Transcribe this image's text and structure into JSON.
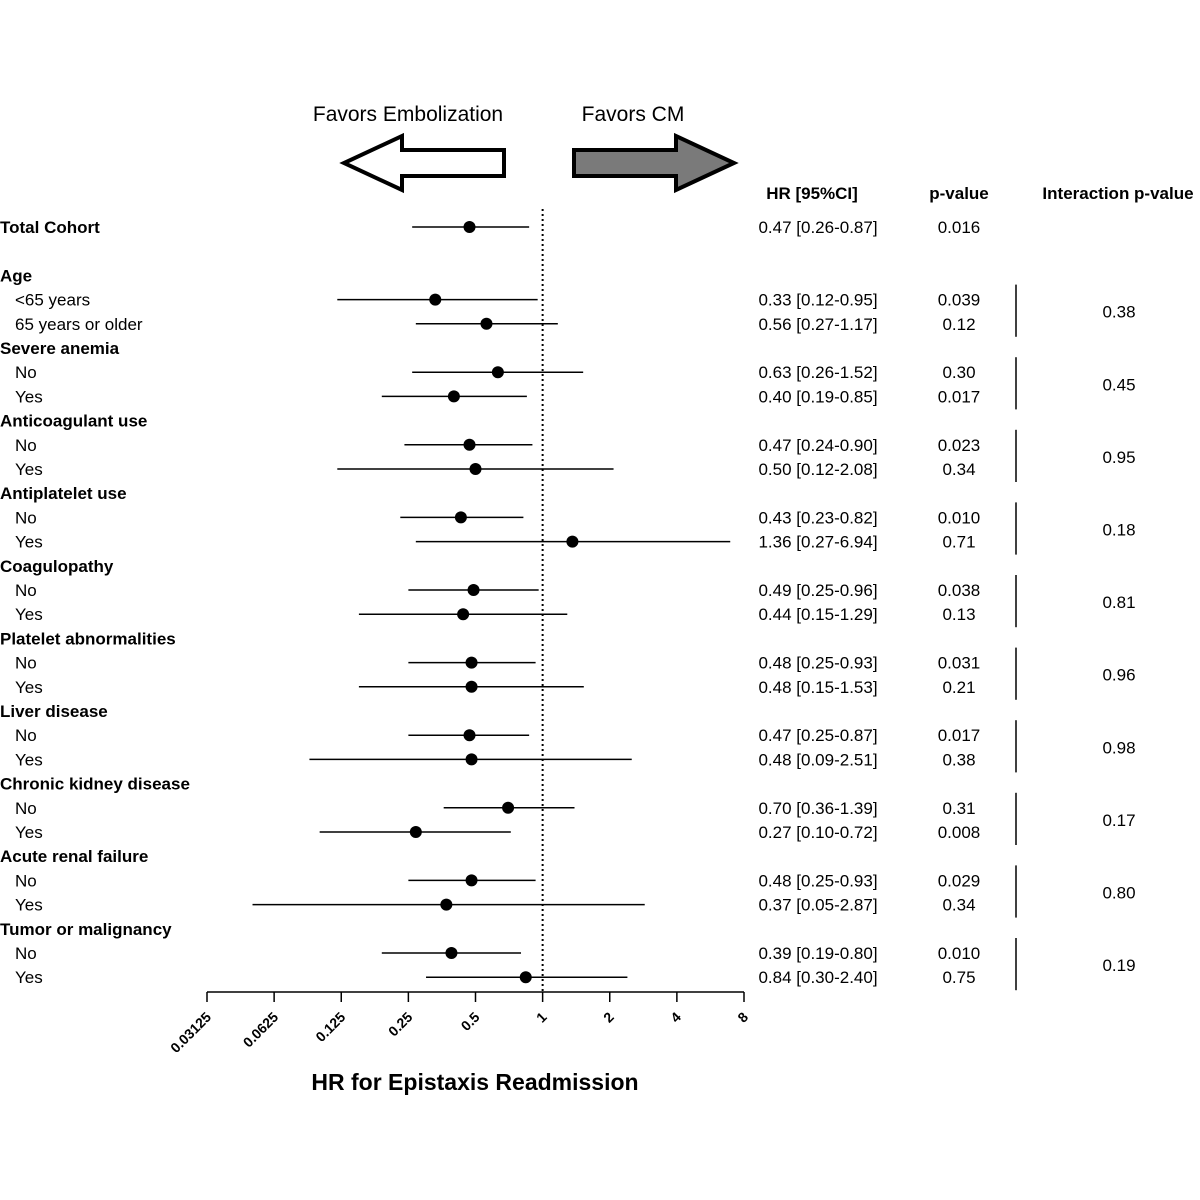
{
  "chart_data": {
    "type": "forest",
    "xlabel": "HR for Epistaxis Readmission",
    "x_scale": "log2",
    "xlim": [
      0.03125,
      8
    ],
    "x_ticks": [
      "0.03125",
      "0.0625",
      "0.125",
      "0.25",
      "0.5",
      "1",
      "2",
      "4",
      "8"
    ],
    "reference_line": 1,
    "favors_left": "Favors Embolization",
    "favors_right": "Favors CM",
    "column_headers": {
      "hr": "HR [95%CI]",
      "p": "p-value",
      "interaction": "Interaction p-value"
    },
    "groups": [
      {
        "title": "Total Cohort",
        "rows": [
          {
            "label": "",
            "hr": 0.47,
            "lo": 0.26,
            "hi": 0.87,
            "hr_text": "0.47 [0.26-0.87]",
            "p": "0.016"
          }
        ],
        "interaction": ""
      },
      {
        "title": "Age",
        "rows": [
          {
            "label": "<65 years",
            "hr": 0.33,
            "lo": 0.12,
            "hi": 0.95,
            "hr_text": "0.33 [0.12-0.95]",
            "p": "0.039"
          },
          {
            "label": "65 years or older",
            "hr": 0.56,
            "lo": 0.27,
            "hi": 1.17,
            "hr_text": "0.56 [0.27-1.17]",
            "p": "0.12"
          }
        ],
        "interaction": "0.38"
      },
      {
        "title": "Severe anemia",
        "rows": [
          {
            "label": "No",
            "hr": 0.63,
            "lo": 0.26,
            "hi": 1.52,
            "hr_text": "0.63 [0.26-1.52]",
            "p": "0.30"
          },
          {
            "label": "Yes",
            "hr": 0.4,
            "lo": 0.19,
            "hi": 0.85,
            "hr_text": "0.40 [0.19-0.85]",
            "p": "0.017"
          }
        ],
        "interaction": "0.45"
      },
      {
        "title": "Anticoagulant use",
        "rows": [
          {
            "label": "No",
            "hr": 0.47,
            "lo": 0.24,
            "hi": 0.9,
            "hr_text": "0.47 [0.24-0.90]",
            "p": "0.023"
          },
          {
            "label": "Yes",
            "hr": 0.5,
            "lo": 0.12,
            "hi": 2.08,
            "hr_text": "0.50 [0.12-2.08]",
            "p": "0.34"
          }
        ],
        "interaction": "0.95"
      },
      {
        "title": "Antiplatelet use",
        "rows": [
          {
            "label": "No",
            "hr": 0.43,
            "lo": 0.23,
            "hi": 0.82,
            "hr_text": "0.43 [0.23-0.82]",
            "p": "0.010"
          },
          {
            "label": "Yes",
            "hr": 1.36,
            "lo": 0.27,
            "hi": 6.94,
            "hr_text": "1.36 [0.27-6.94]",
            "p": "0.71"
          }
        ],
        "interaction": "0.18"
      },
      {
        "title": "Coagulopathy",
        "rows": [
          {
            "label": "No",
            "hr": 0.49,
            "lo": 0.25,
            "hi": 0.96,
            "hr_text": "0.49 [0.25-0.96]",
            "p": "0.038"
          },
          {
            "label": "Yes",
            "hr": 0.44,
            "lo": 0.15,
            "hi": 1.29,
            "hr_text": "0.44 [0.15-1.29]",
            "p": "0.13"
          }
        ],
        "interaction": "0.81"
      },
      {
        "title": "Platelet abnormalities",
        "rows": [
          {
            "label": "No",
            "hr": 0.48,
            "lo": 0.25,
            "hi": 0.93,
            "hr_text": "0.48 [0.25-0.93]",
            "p": "0.031"
          },
          {
            "label": "Yes",
            "hr": 0.48,
            "lo": 0.15,
            "hi": 1.53,
            "hr_text": "0.48 [0.15-1.53]",
            "p": "0.21"
          }
        ],
        "interaction": "0.96"
      },
      {
        "title": "Liver disease",
        "rows": [
          {
            "label": "No",
            "hr": 0.47,
            "lo": 0.25,
            "hi": 0.87,
            "hr_text": "0.47 [0.25-0.87]",
            "p": "0.017"
          },
          {
            "label": "Yes",
            "hr": 0.48,
            "lo": 0.09,
            "hi": 2.51,
            "hr_text": "0.48 [0.09-2.51]",
            "p": "0.38"
          }
        ],
        "interaction": "0.98"
      },
      {
        "title": "Chronic kidney disease",
        "rows": [
          {
            "label": "No",
            "hr": 0.7,
            "lo": 0.36,
            "hi": 1.39,
            "hr_text": "0.70 [0.36-1.39]",
            "p": "0.31"
          },
          {
            "label": "Yes",
            "hr": 0.27,
            "lo": 0.1,
            "hi": 0.72,
            "hr_text": "0.27 [0.10-0.72]",
            "p": "0.008"
          }
        ],
        "interaction": "0.17"
      },
      {
        "title": "Acute renal failure",
        "rows": [
          {
            "label": "No",
            "hr": 0.48,
            "lo": 0.25,
            "hi": 0.93,
            "hr_text": "0.48 [0.25-0.93]",
            "p": "0.029"
          },
          {
            "label": "Yes",
            "hr": 0.37,
            "lo": 0.05,
            "hi": 2.87,
            "hr_text": "0.37 [0.05-2.87]",
            "p": "0.34"
          }
        ],
        "interaction": "0.80"
      },
      {
        "title": "Tumor or malignancy",
        "rows": [
          {
            "label": "No",
            "hr": 0.39,
            "lo": 0.19,
            "hi": 0.8,
            "hr_text": "0.39 [0.19-0.80]",
            "p": "0.010"
          },
          {
            "label": "Yes",
            "hr": 0.84,
            "lo": 0.3,
            "hi": 2.4,
            "hr_text": "0.84 [0.30-2.40]",
            "p": "0.75"
          }
        ],
        "interaction": "0.19"
      }
    ],
    "colors": {
      "ink": "#000000",
      "right_arrow_fill": "#7a7a7a",
      "left_arrow_fill": "#ffffff"
    }
  }
}
